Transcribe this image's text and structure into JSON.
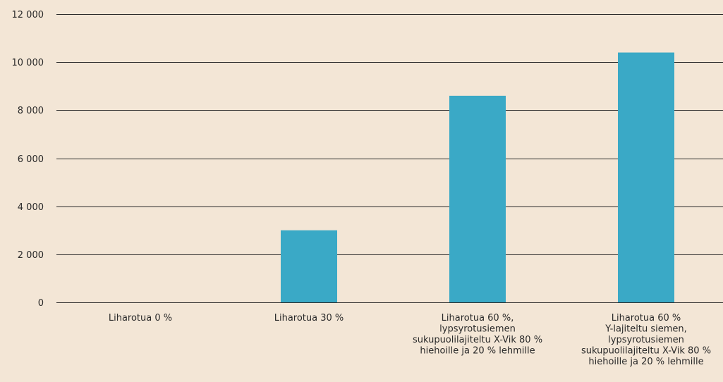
{
  "chart_data": {
    "type": "bar",
    "title": "",
    "xlabel": "",
    "ylabel": "",
    "ylim": [
      0,
      12000
    ],
    "yticks": [
      0,
      2000,
      4000,
      6000,
      8000,
      10000,
      12000
    ],
    "ytick_labels": [
      "0",
      "2 000",
      "4 000",
      "6 000",
      "8 000",
      "10 000",
      "12 000"
    ],
    "grid": true,
    "legend": "none",
    "bar_color": "#3aa9c6",
    "gridline_color": "#2a2a2a",
    "background_color": "#f3e6d6",
    "categories": [
      [
        "Liharotua 0 %"
      ],
      [
        "Liharotua 30 %"
      ],
      [
        "Liharotua 60 %,",
        "lypsyrotusiemen",
        "sukupuolilajiteltu X-Vik 80 %",
        "hiehoille ja 20 % lehmille"
      ],
      [
        "Liharotua 60 %",
        "Y-lajiteltu siemen,",
        "lypsyrotusiemen",
        "sukupuolilajiteltu X-Vik 80 %",
        "hiehoille ja 20 % lehmille"
      ]
    ],
    "values": [
      0,
      3000,
      8600,
      10400
    ]
  }
}
